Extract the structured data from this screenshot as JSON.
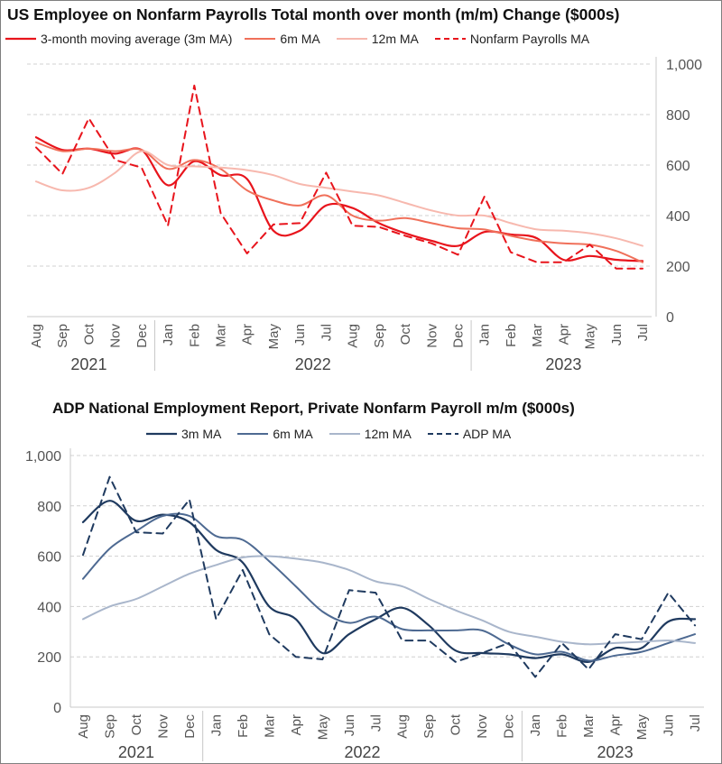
{
  "chart_data": [
    {
      "type": "line",
      "title": "US Employee on Nonfarm Payrolls Total month over month (m/m) Change ($000s)",
      "months": [
        "Aug",
        "Sep",
        "Oct",
        "Nov",
        "Dec",
        "Jan",
        "Feb",
        "Mar",
        "Apr",
        "May",
        "Jun",
        "Jul",
        "Aug",
        "Sep",
        "Oct",
        "Nov",
        "Dec",
        "Jan",
        "Feb",
        "Mar",
        "Apr",
        "May",
        "Jun",
        "Jul"
      ],
      "years": [
        {
          "label": "2021",
          "start": 0,
          "end": 4
        },
        {
          "label": "2022",
          "start": 5,
          "end": 16
        },
        {
          "label": "2023",
          "start": 17,
          "end": 23
        }
      ],
      "ylim": [
        0,
        1000
      ],
      "yticks": [
        0,
        200,
        400,
        600,
        800,
        1000
      ],
      "ytick_labels": [
        "0",
        "200",
        "400",
        "600",
        "800",
        "1,000"
      ],
      "y_axis_side": "right",
      "series": [
        {
          "name": "3-month moving average (3m MA)",
          "color": "#e8141c",
          "dash": false,
          "width": 2.2,
          "values": [
            710,
            660,
            665,
            645,
            660,
            520,
            615,
            560,
            545,
            340,
            340,
            440,
            430,
            370,
            330,
            300,
            280,
            335,
            325,
            310,
            225,
            240,
            225,
            220
          ]
        },
        {
          "name": "6m MA",
          "color": "#f0705a",
          "dash": false,
          "width": 2,
          "values": [
            690,
            655,
            665,
            655,
            660,
            585,
            620,
            585,
            500,
            460,
            440,
            480,
            400,
            380,
            390,
            370,
            350,
            345,
            320,
            300,
            290,
            285,
            260,
            215
          ]
        },
        {
          "name": "12m MA",
          "color": "#f7b8ae",
          "dash": false,
          "width": 2,
          "values": [
            535,
            500,
            510,
            570,
            655,
            600,
            595,
            590,
            580,
            560,
            525,
            510,
            495,
            480,
            450,
            420,
            400,
            400,
            370,
            345,
            340,
            330,
            310,
            280
          ]
        },
        {
          "name": "Nonfarm Payrolls MA",
          "color": "#e8141c",
          "dash": true,
          "width": 2,
          "values": [
            670,
            565,
            785,
            620,
            590,
            360,
            915,
            410,
            250,
            365,
            370,
            570,
            360,
            355,
            320,
            290,
            245,
            475,
            255,
            215,
            215,
            285,
            190,
            190
          ]
        }
      ]
    },
    {
      "type": "line",
      "title": "ADP National Employment Report, Private Nonfarm Payroll m/m ($000s)",
      "months": [
        "Aug",
        "Sep",
        "Oct",
        "Nov",
        "Dec",
        "Jan",
        "Feb",
        "Mar",
        "Apr",
        "May",
        "Jun",
        "Jul",
        "Aug",
        "Sep",
        "Oct",
        "Nov",
        "Dec",
        "Jan",
        "Feb",
        "Mar",
        "Apr",
        "May",
        "Jun",
        "Jul"
      ],
      "years": [
        {
          "label": "2021",
          "start": 0,
          "end": 4
        },
        {
          "label": "2022",
          "start": 5,
          "end": 16
        },
        {
          "label": "2023",
          "start": 17,
          "end": 23
        }
      ],
      "ylim": [
        0,
        1000
      ],
      "yticks": [
        0,
        200,
        400,
        600,
        800,
        1000
      ],
      "ytick_labels": [
        "0",
        "200",
        "400",
        "600",
        "800",
        "1,000"
      ],
      "y_axis_side": "left",
      "series": [
        {
          "name": "3m MA",
          "color": "#1f3a5f",
          "dash": false,
          "width": 2.2,
          "values": [
            735,
            820,
            740,
            765,
            735,
            625,
            575,
            400,
            350,
            215,
            290,
            350,
            395,
            325,
            225,
            215,
            210,
            195,
            210,
            180,
            235,
            235,
            340,
            350
          ]
        },
        {
          "name": "6m MA",
          "color": "#4e6a92",
          "dash": false,
          "width": 2,
          "values": [
            510,
            630,
            700,
            760,
            760,
            680,
            665,
            580,
            480,
            380,
            335,
            360,
            310,
            305,
            305,
            305,
            250,
            210,
            220,
            185,
            205,
            220,
            255,
            290
          ]
        },
        {
          "name": "12m MA",
          "color": "#a9b6cb",
          "dash": false,
          "width": 2,
          "values": [
            350,
            400,
            430,
            480,
            530,
            565,
            595,
            600,
            590,
            575,
            545,
            500,
            480,
            430,
            385,
            345,
            300,
            280,
            260,
            250,
            255,
            260,
            265,
            255
          ]
        },
        {
          "name": "ADP MA",
          "color": "#1f3a5f",
          "dash": true,
          "width": 2,
          "values": [
            605,
            915,
            695,
            690,
            825,
            350,
            545,
            290,
            200,
            190,
            465,
            455,
            265,
            265,
            180,
            215,
            255,
            120,
            255,
            150,
            290,
            270,
            455,
            325
          ]
        }
      ]
    }
  ]
}
